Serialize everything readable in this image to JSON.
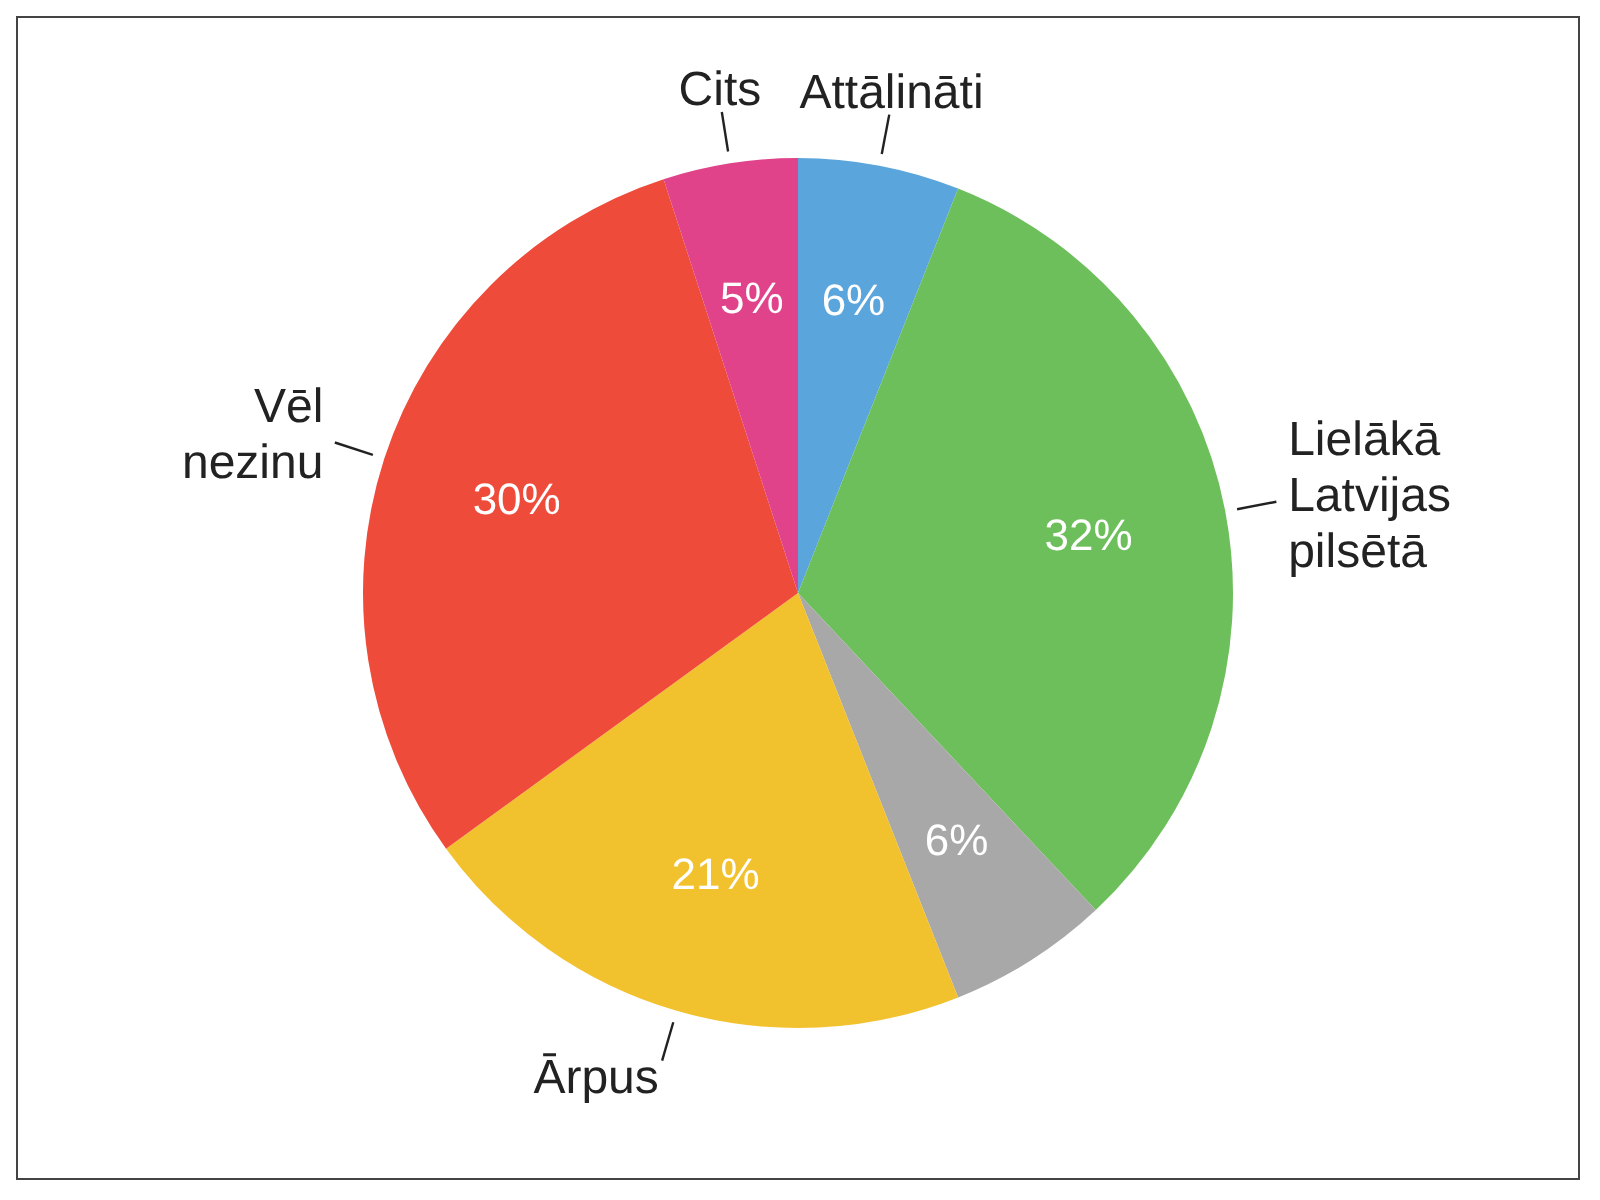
{
  "chart_data": {
    "type": "pie",
    "categories": [
      "Attālināti",
      "Lielākā Latvijas pilsētā",
      null,
      "Ārpus",
      "Vēl nezinu",
      "Cits"
    ],
    "values": [
      6,
      32,
      6,
      21,
      30,
      5
    ],
    "colors": [
      "#5aa5dc",
      "#6cbf5a",
      "#a8a8a8",
      "#f2c12e",
      "#ef4b3a",
      "#e0438a"
    ],
    "value_labels": [
      "6%",
      "32%",
      "6%",
      "21%",
      "30%",
      "5%"
    ],
    "legend": false
  }
}
